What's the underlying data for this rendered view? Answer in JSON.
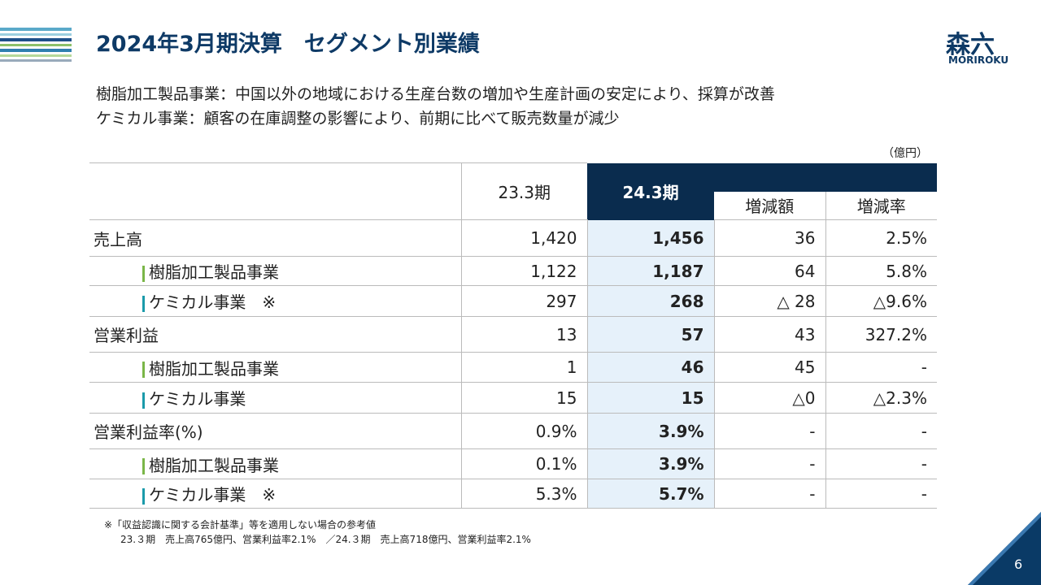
{
  "header": {
    "title": "2024年3月期決算　セグメント別業績",
    "logo": {
      "mark": "森六",
      "name": "MORIROKU"
    },
    "page": "6"
  },
  "summary": [
    "樹脂加工製品事業：中国以外の地域における生産台数の増加や生産計画の安定により、採算が改善",
    "ケミカル事業：顧客の在庫調整の影響により、前期に比べて販売数量が減少"
  ],
  "unit": "（億円）",
  "table": {
    "columns": [
      "23.3期",
      "24.3期",
      "増減額",
      "増減率"
    ],
    "rows": [
      [
        "売上高",
        "1,420",
        "1,456",
        "36",
        "2.5%"
      ],
      [
        "樹脂加工製品事業",
        "1,122",
        "1,187",
        "64",
        "5.8%"
      ],
      [
        "ケミカル事業　※",
        "297",
        "268",
        "△ 28",
        "△9.6%"
      ],
      [
        "営業利益",
        "13",
        "57",
        "43",
        "327.2%"
      ],
      [
        "樹脂加工製品事業",
        "1",
        "46",
        "45",
        "-"
      ],
      [
        "ケミカル事業",
        "15",
        "15",
        "△0",
        "△2.3%"
      ],
      [
        "営業利益率(%)",
        "0.9%",
        "3.9%",
        "-",
        "-"
      ],
      [
        "樹脂加工製品事業",
        "0.1%",
        "3.9%",
        "-",
        "-"
      ],
      [
        "ケミカル事業　※",
        "5.3%",
        "5.7%",
        "-",
        "-"
      ]
    ]
  },
  "footnote": [
    "※「収益認識に関する会計基準」等を適用しない場合の参考値",
    "23.３期　売上高765億円、営業利益率2.1%　／24.３期　売上高718億円、営業利益率2.1%"
  ]
}
